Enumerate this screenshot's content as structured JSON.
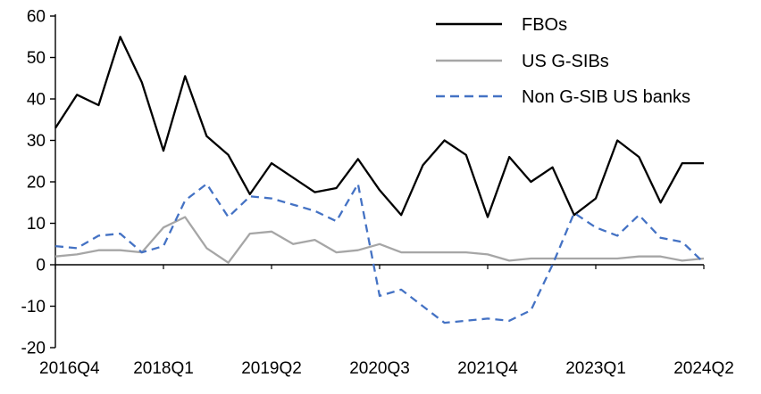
{
  "chart_data": {
    "type": "line",
    "title": "",
    "xlabel": "",
    "ylabel": "",
    "ylim": [
      -20,
      60
    ],
    "grid": false,
    "legend_position": "top-right",
    "y_ticks": [
      60,
      50,
      40,
      30,
      20,
      10,
      0,
      -10,
      -20
    ],
    "x_tick_labels": [
      "2016Q4",
      "2018Q1",
      "2019Q2",
      "2020Q3",
      "2021Q4",
      "2023Q1",
      "2024Q2"
    ],
    "x_tick_indices": [
      0,
      5,
      10,
      15,
      20,
      25,
      30
    ],
    "n_points": 31,
    "axis_color": "#000000",
    "series": [
      {
        "name": "FBOs",
        "color": "#000000",
        "dash": "solid",
        "values": [
          33,
          41,
          38.5,
          55,
          44,
          27.5,
          45.5,
          31,
          26.5,
          17,
          24.5,
          21,
          17.5,
          18.5,
          25.5,
          18,
          12,
          24,
          30,
          26.5,
          11.5,
          26,
          20,
          23.5,
          12,
          16,
          30,
          26,
          15,
          24.5,
          24.5
        ]
      },
      {
        "name": "US G-SIBs",
        "color": "#a6a6a6",
        "dash": "solid",
        "values": [
          2,
          2.5,
          3.5,
          3.5,
          3,
          9,
          11.5,
          4,
          0.5,
          7.5,
          8,
          5,
          6,
          3,
          3.5,
          5,
          3,
          3,
          3,
          3,
          2.5,
          1,
          1.5,
          1.5,
          1.5,
          1.5,
          1.5,
          2,
          2,
          1,
          1.5
        ]
      },
      {
        "name": "Non G-SIB US banks",
        "color": "#4472c4",
        "dash": "dashed",
        "values": [
          4.5,
          4,
          7,
          7.5,
          3,
          4.5,
          15.5,
          19.5,
          11.5,
          16.5,
          16,
          14.5,
          13,
          10.5,
          19.5,
          -7.5,
          -6,
          -10,
          -14,
          -13.5,
          -13,
          -13.5,
          -11,
          0,
          12.5,
          9,
          7,
          12,
          6.5,
          5.5,
          0.5
        ]
      }
    ]
  }
}
